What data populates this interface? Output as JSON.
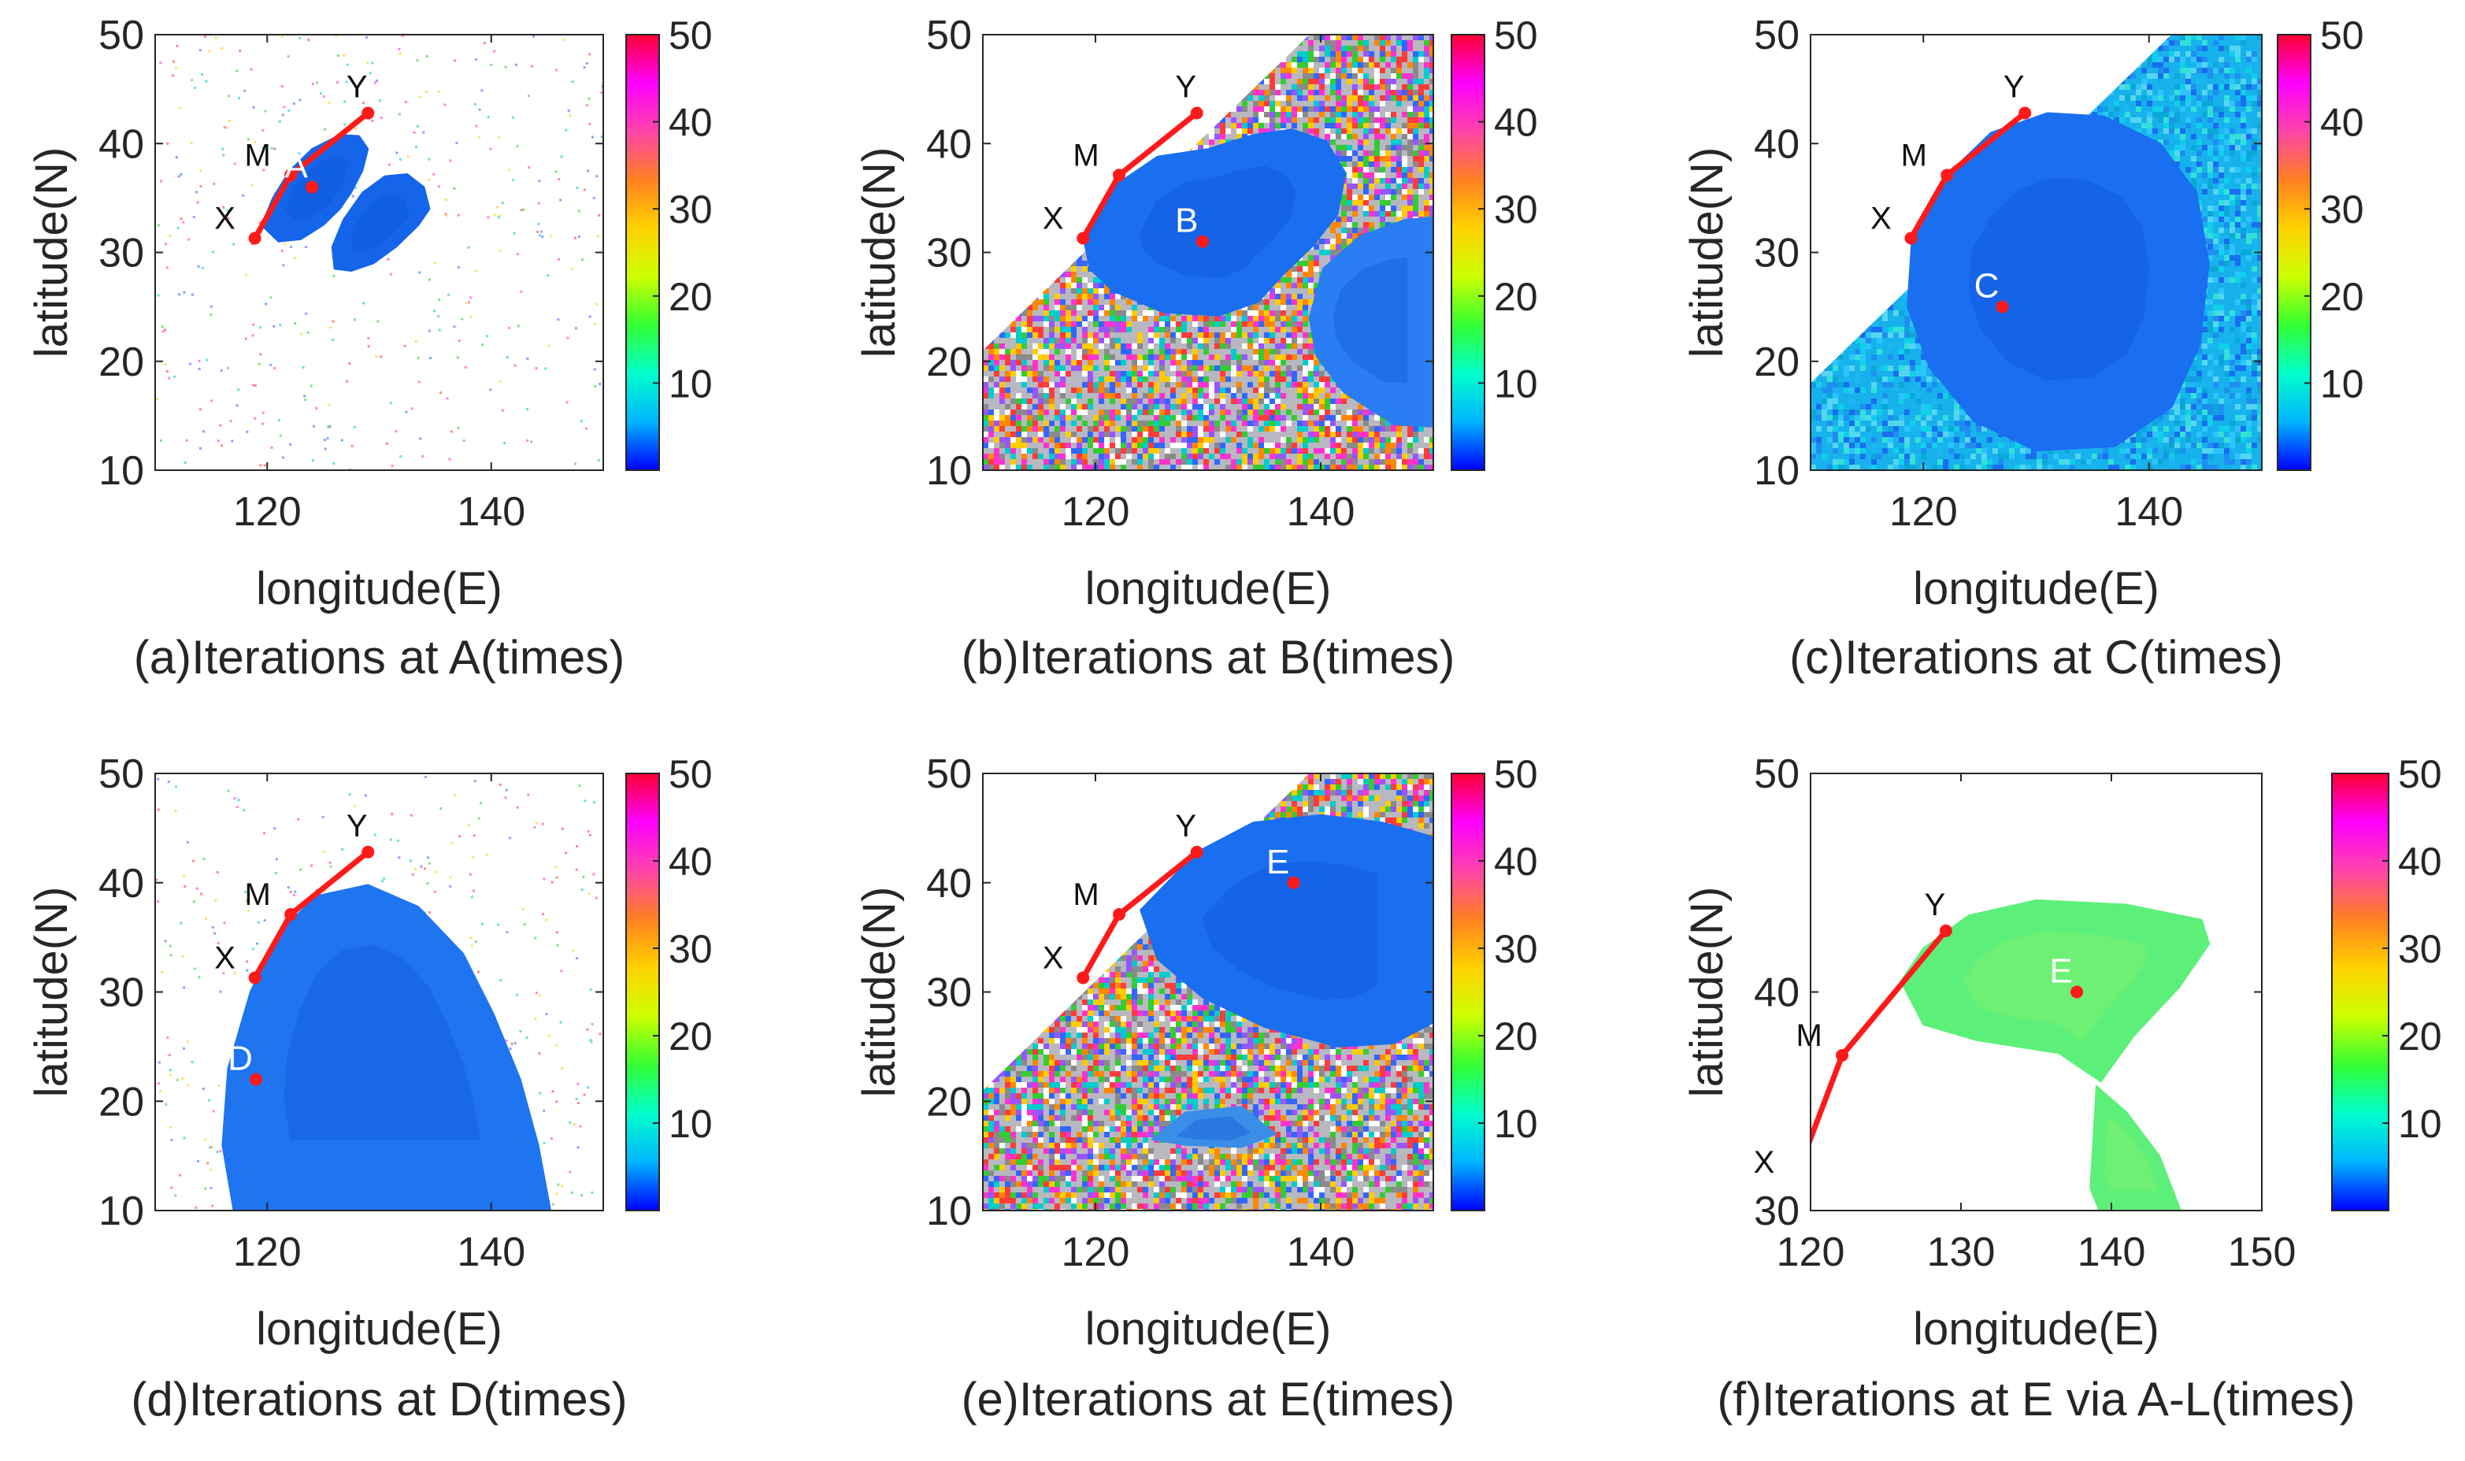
{
  "figure": {
    "background": "#ffffff"
  },
  "colorbar": {
    "ticks": [
      10,
      20,
      30,
      40,
      50
    ],
    "range": [
      0,
      50
    ],
    "colormap": [
      "#0000ff",
      "#00b4ff",
      "#00ffcc",
      "#33ff33",
      "#ccff00",
      "#ffd200",
      "#ff8020",
      "#ff44aa",
      "#ff00ff",
      "#ff0033"
    ]
  },
  "route": {
    "color": "#ff1a1a",
    "points": [
      {
        "name": "X",
        "lon": 118.9,
        "lat": 31.3
      },
      {
        "name": "M",
        "lon": 122.1,
        "lat": 37.1
      },
      {
        "name": "Y",
        "lon": 129.0,
        "lat": 42.8
      }
    ]
  },
  "chart_data": [
    {
      "type": "heatmap",
      "panel": "a",
      "caption": "(a)Iterations at A(times)",
      "xlabel": "longitude(E)",
      "ylabel": "latitude(N)",
      "xlim": [
        110,
        150
      ],
      "ylim": [
        10,
        50
      ],
      "xticks": [
        120,
        140
      ],
      "yticks": [
        10,
        20,
        30,
        40,
        50
      ],
      "target": {
        "label": "A",
        "lon": 124.0,
        "lat": 36.0
      },
      "background_noise": "sparse",
      "noise_boundary": null,
      "regions": [
        {
          "color": "#1565ea",
          "points": [
            [
              121,
              31
            ],
            [
              119.5,
              32.5
            ],
            [
              120.5,
              35
            ],
            [
              122,
              37.5
            ],
            [
              124,
              39.5
            ],
            [
              126.5,
              40.8
            ],
            [
              128.2,
              40.7
            ],
            [
              129,
              39.5
            ],
            [
              128.5,
              37.5
            ],
            [
              127.5,
              35.5
            ],
            [
              126.5,
              34
            ],
            [
              125,
              32.5
            ],
            [
              123,
              31.2
            ]
          ]
        },
        {
          "color": "#1565ea",
          "points": [
            [
              126,
              28.5
            ],
            [
              125.8,
              30.5
            ],
            [
              126.8,
              33
            ],
            [
              128.5,
              35.5
            ],
            [
              130.5,
              37
            ],
            [
              132.5,
              37.2
            ],
            [
              134,
              36
            ],
            [
              134.5,
              34
            ],
            [
              133.5,
              32.5
            ],
            [
              131.5,
              30.5
            ],
            [
              129.5,
              29
            ],
            [
              127.5,
              28.3
            ]
          ]
        }
      ],
      "bar_value_label": ""
    },
    {
      "type": "heatmap",
      "panel": "b",
      "caption": "(b)Iterations at B(times)",
      "xlabel": "longitude(E)",
      "ylabel": "latitude(N)",
      "xlim": [
        110,
        150
      ],
      "ylim": [
        10,
        50
      ],
      "xticks": [
        120,
        140
      ],
      "yticks": [
        10,
        20,
        30,
        40,
        50
      ],
      "target": {
        "label": "B",
        "lon": 129.5,
        "lat": 31.0
      },
      "background_noise": "dense",
      "noise_boundary": [
        [
          110,
          21
        ],
        [
          139,
          50
        ]
      ],
      "regions": [
        {
          "color": "#1a6ef0",
          "points": [
            [
              119,
              31
            ],
            [
              121.5,
              36
            ],
            [
              125.5,
              38.8
            ],
            [
              130,
              39.5
            ],
            [
              134,
              40.8
            ],
            [
              137.5,
              41.3
            ],
            [
              140.5,
              40.2
            ],
            [
              142.2,
              37.3
            ],
            [
              141.5,
              33.5
            ],
            [
              139.2,
              30.5
            ],
            [
              136.5,
              27.8
            ],
            [
              134.5,
              25.5
            ],
            [
              131,
              24.2
            ],
            [
              126,
              24.5
            ],
            [
              121.5,
              26.5
            ],
            [
              119.5,
              28.5
            ]
          ]
        },
        {
          "color": "#2a7df2",
          "points": [
            [
              139,
              24
            ],
            [
              140.2,
              28.5
            ],
            [
              143.5,
              31.5
            ],
            [
              147.5,
              33
            ],
            [
              150,
              33.2
            ],
            [
              150,
              14
            ],
            [
              146.5,
              14.2
            ],
            [
              142,
              17.2
            ],
            [
              139.6,
              20.5
            ]
          ]
        }
      ],
      "bar_value_label": ""
    },
    {
      "type": "heatmap",
      "panel": "c",
      "caption": "(c)Iterations at C(times)",
      "xlabel": "longitude(E)",
      "ylabel": "latitude(N)",
      "xlim": [
        110,
        150
      ],
      "ylim": [
        10,
        50
      ],
      "xticks": [
        120,
        140
      ],
      "yticks": [
        10,
        20,
        30,
        40,
        50
      ],
      "target": {
        "label": "C",
        "lon": 127.0,
        "lat": 25.0
      },
      "background_noise": "cyan",
      "noise_boundary": [
        [
          110,
          18
        ],
        [
          142,
          50
        ]
      ],
      "regions": [
        {
          "color": "#1a6ef0",
          "points": [
            [
              119,
              31.5
            ],
            [
              122,
              37
            ],
            [
              126,
              41
            ],
            [
              131,
              42.8
            ],
            [
              136,
              42.5
            ],
            [
              141,
              40
            ],
            [
              144.2,
              35.5
            ],
            [
              145.3,
              29
            ],
            [
              144.5,
              21.5
            ],
            [
              142,
              15.8
            ],
            [
              137,
              12.2
            ],
            [
              130,
              11.8
            ],
            [
              124.5,
              14.5
            ],
            [
              120.5,
              19.5
            ],
            [
              118.6,
              25
            ]
          ]
        }
      ],
      "bar_value_label": ""
    },
    {
      "type": "heatmap",
      "panel": "d",
      "caption": "(d)Iterations at D(times)",
      "xlabel": "longitude(E)",
      "ylabel": "latitude(N)",
      "xlim": [
        110,
        150
      ],
      "ylim": [
        10,
        50
      ],
      "xticks": [
        120,
        140
      ],
      "yticks": [
        10,
        20,
        30,
        40,
        50
      ],
      "target": {
        "label": "D",
        "lon": 119.0,
        "lat": 22.0
      },
      "background_noise": "sparse",
      "noise_boundary": null,
      "regions": [
        {
          "color": "#1f74f0",
          "points": [
            [
              117,
              10
            ],
            [
              116,
              16
            ],
            [
              116.5,
              23
            ],
            [
              118.5,
              30
            ],
            [
              121,
              35.5
            ],
            [
              124.5,
              38.8
            ],
            [
              129,
              39.8
            ],
            [
              133.5,
              37.8
            ],
            [
              137.5,
              33.5
            ],
            [
              140.2,
              28
            ],
            [
              142.6,
              22
            ],
            [
              144.2,
              16
            ],
            [
              145.3,
              10
            ]
          ]
        }
      ],
      "bar_value_label": ""
    },
    {
      "type": "heatmap",
      "panel": "e",
      "caption": "(e)Iterations at E(times)",
      "xlabel": "longitude(E)",
      "ylabel": "latitude(N)",
      "xlim": [
        110,
        150
      ],
      "ylim": [
        10,
        50
      ],
      "xticks": [
        120,
        140
      ],
      "yticks": [
        10,
        20,
        30,
        40,
        50
      ],
      "target": {
        "label": "E",
        "lon": 137.6,
        "lat": 40.0
      },
      "background_noise": "dense",
      "noise_boundary": [
        [
          110,
          21
        ],
        [
          139,
          50
        ]
      ],
      "regions": [
        {
          "color": "#1a6ef0",
          "points": [
            [
              124,
              37.5
            ],
            [
              129,
              42.8
            ],
            [
              134,
              45.5
            ],
            [
              140,
              46.2
            ],
            [
              145.5,
              45.5
            ],
            [
              150,
              44.2
            ],
            [
              150,
              27.2
            ],
            [
              146.5,
              25.3
            ],
            [
              141.5,
              25
            ],
            [
              135,
              26.8
            ],
            [
              129.5,
              29.5
            ],
            [
              125.5,
              33
            ]
          ]
        },
        {
          "color": "#3a8ee8",
          "points": [
            [
              125,
              16.5
            ],
            [
              128,
              16
            ],
            [
              133,
              15.8
            ],
            [
              136,
              17
            ],
            [
              133,
              19.5
            ],
            [
              128,
              19
            ]
          ]
        }
      ],
      "bar_value_label": ""
    },
    {
      "type": "heatmap",
      "panel": "f",
      "caption": "(f)Iterations at E via A-L(times)",
      "xlabel": "longitude(E)",
      "ylabel": "latitude(N)",
      "xlim": [
        120,
        150
      ],
      "ylim": [
        30,
        50
      ],
      "xticks": [
        120,
        130,
        140,
        150
      ],
      "yticks": [
        30,
        40,
        50
      ],
      "target": {
        "label": "E",
        "lon": 137.7,
        "lat": 40.0
      },
      "background_noise": "none",
      "noise_boundary": null,
      "regions": [
        {
          "color": "#5cf07a",
          "points": [
            [
              126,
              40.5
            ],
            [
              127.5,
              42
            ],
            [
              130.5,
              43.5
            ],
            [
              135,
              44.2
            ],
            [
              141,
              44
            ],
            [
              146,
              43.3
            ],
            [
              146.5,
              42.2
            ],
            [
              144.5,
              40.2
            ],
            [
              141.5,
              38
            ],
            [
              139.3,
              35.9
            ],
            [
              136.5,
              37.2
            ],
            [
              131,
              37.8
            ],
            [
              127.5,
              38.5
            ]
          ]
        },
        {
          "color": "#5cf07a",
          "points": [
            [
              139,
              35.7
            ],
            [
              138.6,
              31
            ],
            [
              139.2,
              30
            ],
            [
              144.6,
              30
            ],
            [
              143.2,
              32.5
            ],
            [
              141,
              34.5
            ]
          ]
        }
      ],
      "bar_value_label": ""
    }
  ]
}
